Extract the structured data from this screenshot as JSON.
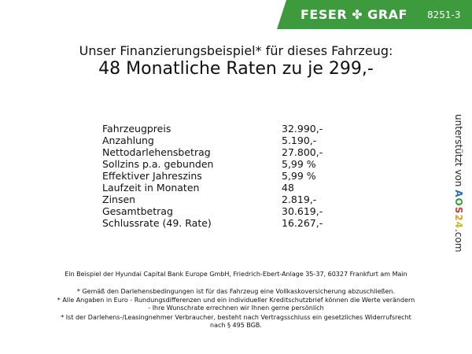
{
  "header": {
    "brand": "FESER ✤ GRAF",
    "code": "8251-3",
    "brand_color": "#3d9b3d"
  },
  "title": {
    "line1": "Unser Finanzierungsbeispiel* für dieses Fahrzeug:",
    "line2": "48 Monatliche Raten zu je 299,-"
  },
  "rows": [
    {
      "label": "Fahrzeugpreis",
      "value": "32.990,-"
    },
    {
      "label": "Anzahlung",
      "value": "5.190,-"
    },
    {
      "label": "Nettodarlehensbetrag",
      "value": "27.800,-"
    },
    {
      "label": "Sollzins p.a. gebunden",
      "value": "5,99 %"
    },
    {
      "label": "Effektiver Jahreszins",
      "value": "5,99 %"
    },
    {
      "label": "Laufzeit in Monaten",
      "value": "48"
    },
    {
      "label": "Zinsen",
      "value": "2.819,-"
    },
    {
      "label": "Gesamtbetrag",
      "value": "30.619,-"
    },
    {
      "label": "Schlussrate (49. Rate)",
      "value": "16.267,-"
    }
  ],
  "side": {
    "prefix": "unterstützt von",
    "logo": "AOS24",
    "suffix": ".com"
  },
  "footer": {
    "bank": "Ein Beispiel der Hyundai Capital Bank Europe GmbH, Friedrich-Ebert-Anlage 35-37, 60327 Frankfurt am Main",
    "note1": "* Gemäß den Darlehensbedingungen ist für das Fahrzeug eine Vollkaskoversicherung abzuschließen.",
    "note2a": "* Alle Angaben in Euro - Rundungsdifferenzen und ein individueller Kreditschutzbrief können die Werte verändern",
    "note2b": "- Ihre Wunschrate errechnen wir Ihnen gerne persönlich",
    "note3a": "* Ist der Darlehens-/Leasingnehmer Verbraucher, besteht nach Vertragsschluss ein gesetzliches Widerrufsrecht",
    "note3b": "nach § 495 BGB."
  }
}
